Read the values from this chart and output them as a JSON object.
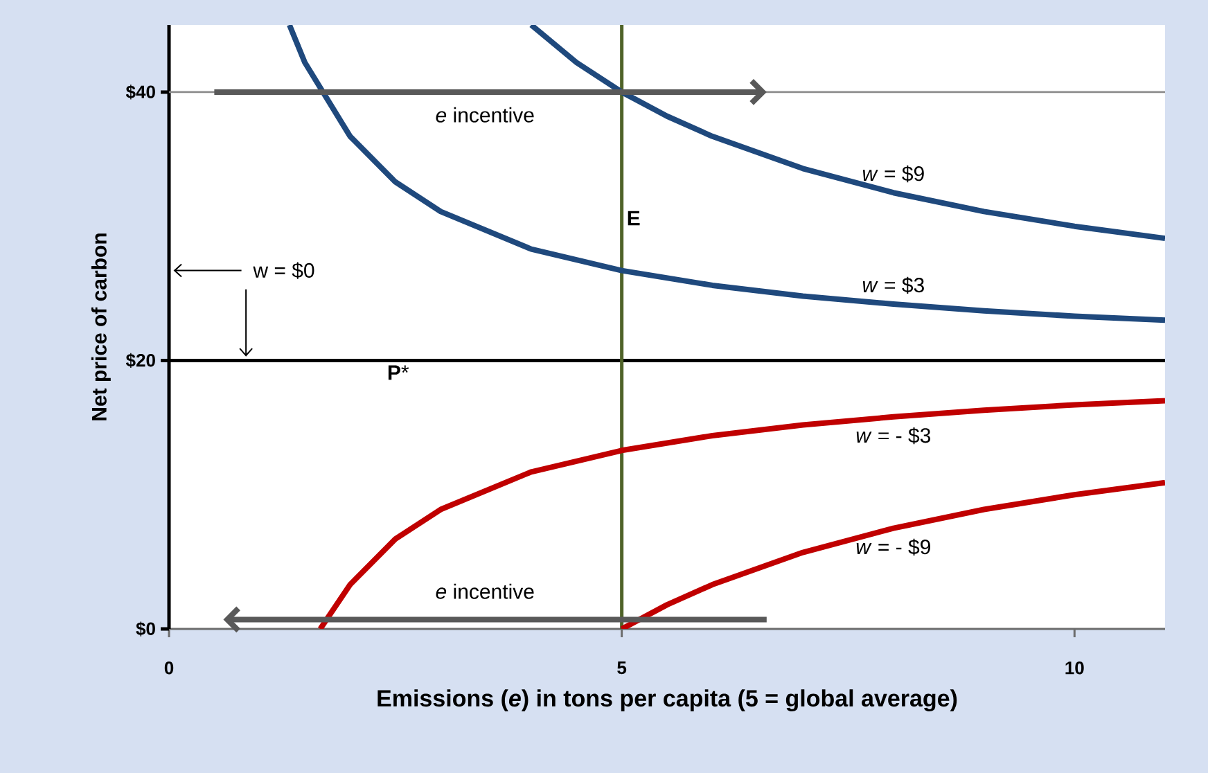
{
  "chart_data": {
    "type": "line",
    "xlabel": "**Emissions (*e*) in tons per capita (5 = global average)**",
    "ylabel": "Net price of carbon",
    "xlim": [
      0,
      11
    ],
    "ylim": [
      0,
      45
    ],
    "xticks": [
      0,
      5,
      10
    ],
    "yticks": [
      {
        "value": 0,
        "label": "$0"
      },
      {
        "value": 20,
        "label": "$20"
      },
      {
        "value": 40,
        "label": "$40"
      }
    ],
    "grid": false,
    "series": [
      {
        "name": "*w* = $9",
        "color": "#1f497d",
        "x": [
          4,
          4.5,
          5,
          5.5,
          6,
          7,
          8,
          9,
          10,
          11
        ],
        "values": [
          45,
          42.2,
          40,
          38.2,
          36.7,
          34.3,
          32.5,
          31.1,
          30,
          29.1
        ]
      },
      {
        "name": "*w* = $3",
        "color": "#1f497d",
        "x": [
          1.33,
          1.5,
          2,
          2.5,
          3,
          4,
          5,
          6,
          7,
          8,
          9,
          10,
          11
        ],
        "values": [
          45,
          42.2,
          36.7,
          33.3,
          31.1,
          28.3,
          26.7,
          25.6,
          24.8,
          24.2,
          23.7,
          23.3,
          23
        ]
      },
      {
        "name": "*w* = - $3",
        "color": "#c00000",
        "x": [
          1.67,
          2,
          2.5,
          3,
          4,
          5,
          6,
          7,
          8,
          9,
          10,
          11
        ],
        "values": [
          0,
          3.3,
          6.7,
          8.9,
          11.7,
          13.3,
          14.4,
          15.2,
          15.8,
          16.3,
          16.7,
          17
        ]
      },
      {
        "name": "*w* = - $9",
        "color": "#c00000",
        "x": [
          5,
          5.5,
          6,
          7,
          8,
          9,
          10,
          11
        ],
        "values": [
          0,
          1.8,
          3.3,
          5.7,
          7.5,
          8.9,
          10,
          10.9
        ]
      }
    ],
    "ref_lines": [
      {
        "axis": "y",
        "value": 40,
        "color": "#8c8c8c"
      },
      {
        "axis": "y",
        "value": 20,
        "label": "**P***",
        "color": "#000000"
      },
      {
        "axis": "x",
        "value": 5,
        "label": "**E**",
        "color": "#4f6228"
      }
    ],
    "annotations": [
      "*e*  incentive",
      "*e*  incentive",
      "w = $0"
    ]
  }
}
